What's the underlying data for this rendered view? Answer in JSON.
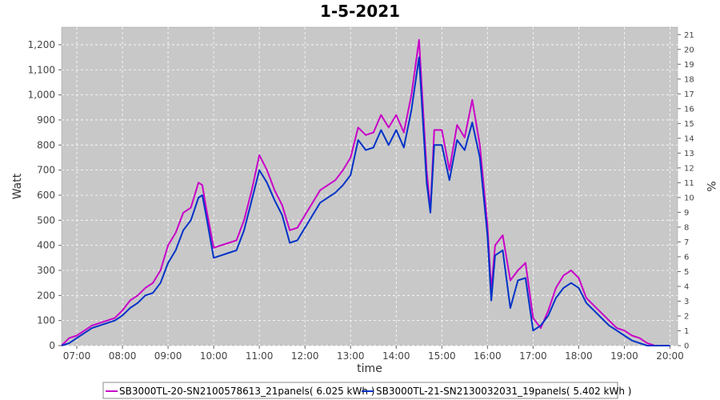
{
  "chart_data": {
    "type": "line",
    "title": "1-5-2021",
    "xlabel": "time",
    "ylabel": "Watt",
    "ylabel_right": "%",
    "xlim": [
      "06:40",
      "20:10"
    ],
    "ylim": [
      0,
      1270
    ],
    "y_ticks": [
      0,
      100,
      200,
      300,
      400,
      500,
      600,
      700,
      800,
      900,
      1000,
      1100,
      1200
    ],
    "y_tick_labels": [
      "0",
      "100",
      "200",
      "300",
      "400",
      "500",
      "600",
      "700",
      "800",
      "900",
      "1,000",
      "1,100",
      "1,200"
    ],
    "y2lim": [
      0,
      21.5
    ],
    "y2_ticks": [
      0,
      1,
      2,
      3,
      4,
      5,
      6,
      7,
      8,
      9,
      10,
      11,
      12,
      13,
      14,
      15,
      16,
      17,
      18,
      19,
      20,
      21
    ],
    "x_ticks": [
      "07:00",
      "08:00",
      "09:00",
      "10:00",
      "11:00",
      "12:00",
      "13:00",
      "14:00",
      "15:00",
      "16:00",
      "17:00",
      "18:00",
      "19:00",
      "20:00"
    ],
    "grid": true,
    "legend_position": "bottom",
    "colors": {
      "plot_bg": "#c8c8c8",
      "grid": "#ffffff"
    },
    "series": [
      {
        "name": "SB3000TL-20-SN2100578613_21panels( 6.025 kWh )",
        "color": "#c800c8",
        "x": [
          "06:40",
          "06:50",
          "07:00",
          "07:10",
          "07:20",
          "07:30",
          "07:40",
          "07:50",
          "08:00",
          "08:10",
          "08:20",
          "08:30",
          "08:40",
          "08:50",
          "09:00",
          "09:10",
          "09:20",
          "09:30",
          "09:40",
          "09:45",
          "09:50",
          "10:00",
          "10:10",
          "10:20",
          "10:30",
          "10:40",
          "10:50",
          "11:00",
          "11:10",
          "11:20",
          "11:30",
          "11:40",
          "11:50",
          "12:00",
          "12:10",
          "12:20",
          "12:30",
          "12:40",
          "12:50",
          "13:00",
          "13:10",
          "13:20",
          "13:30",
          "13:40",
          "13:50",
          "14:00",
          "14:10",
          "14:20",
          "14:30",
          "14:40",
          "14:45",
          "14:50",
          "15:00",
          "15:10",
          "15:20",
          "15:30",
          "15:40",
          "15:50",
          "16:00",
          "16:05",
          "16:10",
          "16:20",
          "16:30",
          "16:40",
          "16:50",
          "17:00",
          "17:10",
          "17:20",
          "17:30",
          "17:40",
          "17:50",
          "18:00",
          "18:10",
          "18:20",
          "18:30",
          "18:40",
          "18:50",
          "19:00",
          "19:10",
          "19:20",
          "19:30",
          "19:40",
          "19:50",
          "20:00"
        ],
        "values": [
          0,
          30,
          40,
          60,
          80,
          90,
          100,
          110,
          140,
          180,
          200,
          230,
          250,
          300,
          400,
          450,
          530,
          550,
          650,
          640,
          550,
          390,
          400,
          410,
          420,
          500,
          620,
          760,
          700,
          620,
          560,
          460,
          470,
          520,
          570,
          620,
          640,
          660,
          700,
          750,
          870,
          840,
          850,
          920,
          870,
          920,
          850,
          1000,
          1220,
          700,
          540,
          860,
          860,
          700,
          880,
          830,
          980,
          800,
          480,
          220,
          400,
          440,
          260,
          300,
          330,
          110,
          70,
          140,
          230,
          280,
          300,
          270,
          190,
          160,
          130,
          100,
          70,
          60,
          40,
          30,
          10,
          0,
          0,
          0
        ]
      },
      {
        "name": "SB3000TL-21-SN2130032031_19panels( 5.402 kWh )",
        "color": "#0032c8",
        "x": [
          "06:40",
          "06:50",
          "07:00",
          "07:10",
          "07:20",
          "07:30",
          "07:40",
          "07:50",
          "08:00",
          "08:10",
          "08:20",
          "08:30",
          "08:40",
          "08:50",
          "09:00",
          "09:10",
          "09:20",
          "09:30",
          "09:40",
          "09:45",
          "09:50",
          "10:00",
          "10:10",
          "10:20",
          "10:30",
          "10:40",
          "10:50",
          "11:00",
          "11:10",
          "11:20",
          "11:30",
          "11:40",
          "11:50",
          "12:00",
          "12:10",
          "12:20",
          "12:30",
          "12:40",
          "12:50",
          "13:00",
          "13:10",
          "13:20",
          "13:30",
          "13:40",
          "13:50",
          "14:00",
          "14:10",
          "14:20",
          "14:30",
          "14:40",
          "14:45",
          "14:50",
          "15:00",
          "15:10",
          "15:20",
          "15:30",
          "15:40",
          "15:50",
          "16:00",
          "16:05",
          "16:10",
          "16:20",
          "16:30",
          "16:40",
          "16:50",
          "17:00",
          "17:10",
          "17:20",
          "17:30",
          "17:40",
          "17:50",
          "18:00",
          "18:10",
          "18:20",
          "18:30",
          "18:40",
          "18:50",
          "19:00",
          "19:10",
          "19:20",
          "19:30",
          "19:40",
          "19:50",
          "20:00"
        ],
        "values": [
          0,
          10,
          30,
          50,
          70,
          80,
          90,
          100,
          120,
          150,
          170,
          200,
          210,
          250,
          330,
          380,
          460,
          500,
          590,
          600,
          520,
          350,
          360,
          370,
          380,
          460,
          580,
          700,
          650,
          580,
          520,
          410,
          420,
          470,
          520,
          570,
          590,
          610,
          640,
          680,
          820,
          780,
          790,
          860,
          800,
          860,
          790,
          940,
          1150,
          650,
          530,
          800,
          800,
          660,
          820,
          780,
          890,
          750,
          440,
          180,
          360,
          380,
          150,
          260,
          270,
          60,
          80,
          120,
          190,
          230,
          250,
          230,
          170,
          140,
          110,
          80,
          60,
          40,
          20,
          10,
          0,
          0,
          0,
          0
        ]
      }
    ]
  }
}
